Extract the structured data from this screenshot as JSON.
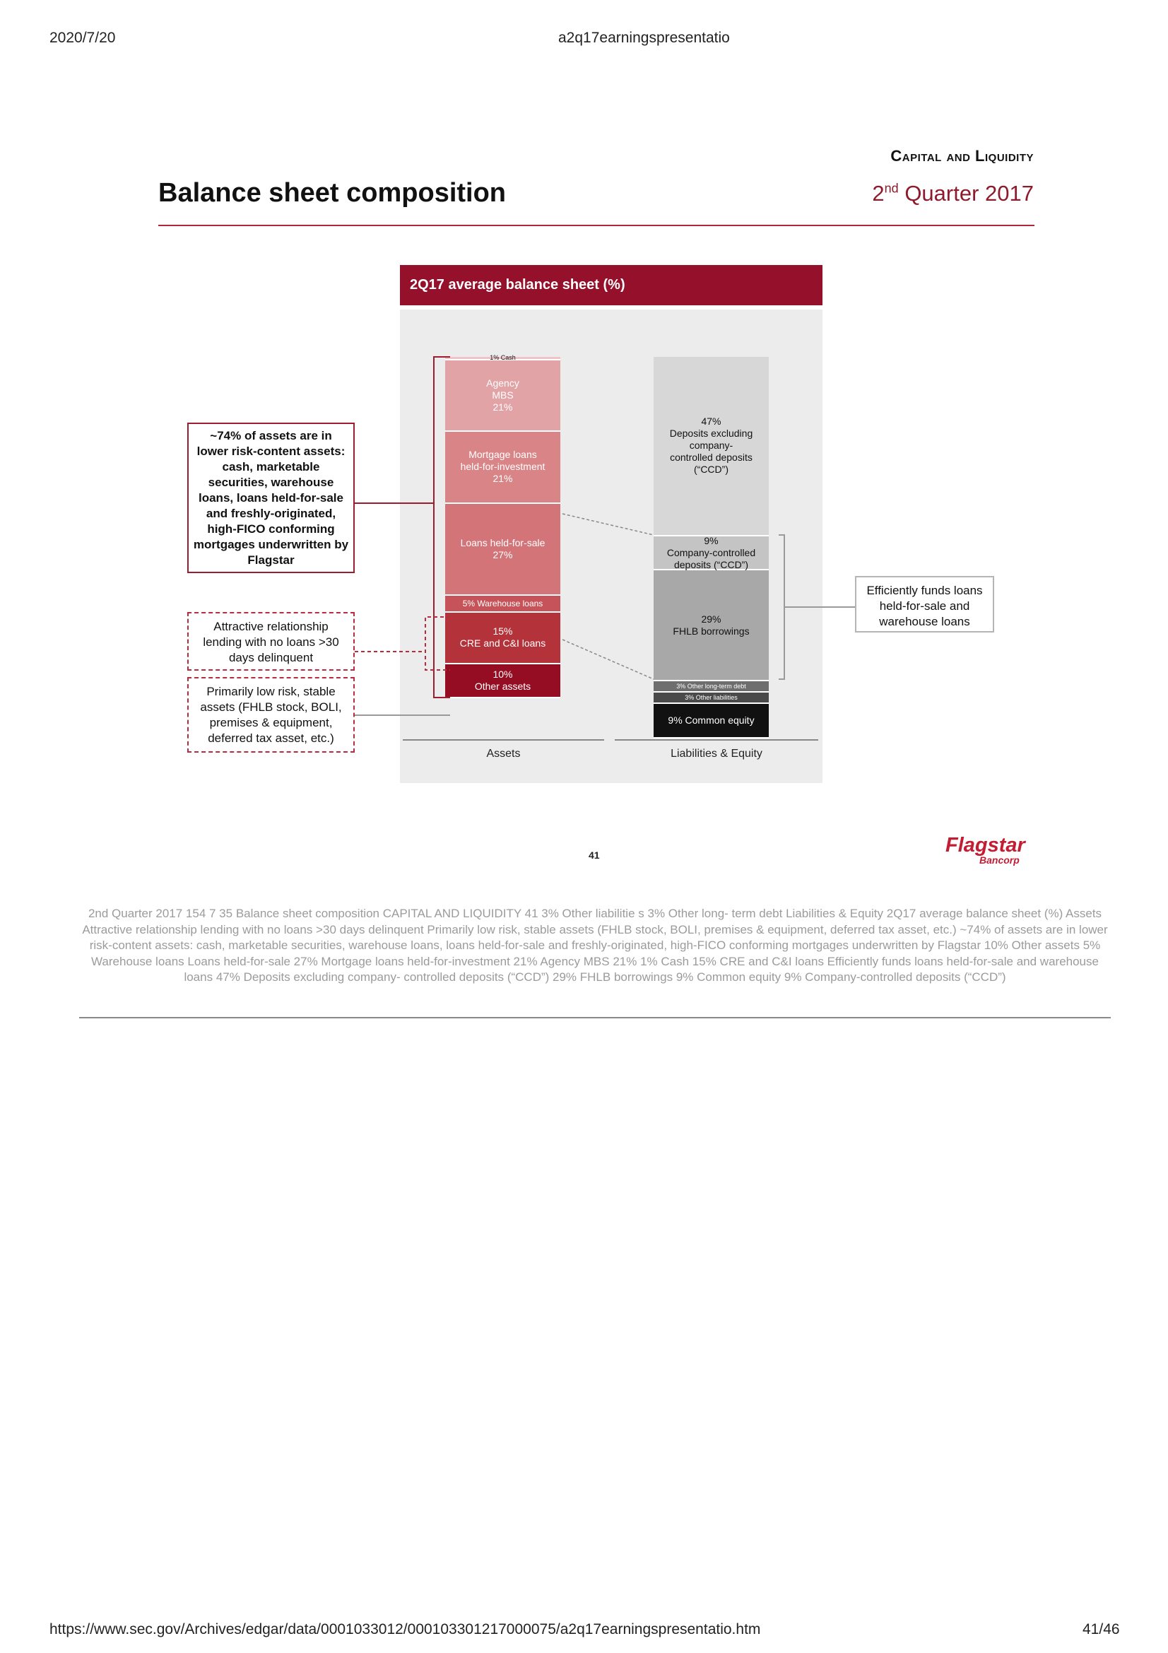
{
  "browser": {
    "date": "2020/7/20",
    "doc_title": "a2q17earningspresentatio",
    "url": "https://www.sec.gov/Archives/edgar/data/0001033012/000103301217000075/a2q17earningspresentatio.htm",
    "page": "41/46"
  },
  "slide": {
    "section": "Capital and Liquidity",
    "title": "Balance sheet composition",
    "quarter_prefix": "2",
    "quarter_sup": "nd",
    "quarter_suffix": " Quarter 2017",
    "panel_title": "2Q17 average balance sheet (%)",
    "page_number": "41",
    "logo_main": "Flagstar",
    "logo_sub": "Bancorp"
  },
  "callouts": {
    "risk": "~74% of assets are in lower risk-content assets: cash, marketable securities, warehouse loans, loans held-for-sale and freshly-originated, high-FICO conforming mortgages underwritten by Flagstar",
    "relationship": "Attractive relationship lending with no loans >30 days delinquent",
    "stable": "Primarily low risk, stable assets (FHLB stock, BOLI, premises & equipment, deferred tax asset, etc.)",
    "efficient": "Efficiently funds loans held-for-sale and warehouse loans"
  },
  "chart_data": {
    "type": "bar",
    "stacked": true,
    "title": "2Q17 average balance sheet (%)",
    "categories": [
      "Assets",
      "Liabilities & Equity"
    ],
    "series": [
      {
        "category": "Assets",
        "segments": [
          {
            "label": "1% Cash",
            "value": 1,
            "color": "#f1c3c6"
          },
          {
            "label": "Agency\nMBS\n21%",
            "value": 21,
            "color": "#e2a3a6"
          },
          {
            "label": "Mortgage loans\nheld-for-investment\n21%",
            "value": 21,
            "color": "#d98487"
          },
          {
            "label": "Loans held-for-sale\n27%",
            "value": 27,
            "color": "#d37478"
          },
          {
            "label": "5% Warehouse loans",
            "value": 5,
            "color": "#c65359"
          },
          {
            "label": "15%\nCRE and C&I loans",
            "value": 15,
            "color": "#b4333a"
          },
          {
            "label": "10%\nOther assets",
            "value": 10,
            "color": "#950d23"
          }
        ]
      },
      {
        "category": "Liabilities & Equity",
        "segments": [
          {
            "label": "47%\nDeposits excluding\ncompany-\ncontrolled deposits\n(“CCD”)",
            "value": 47,
            "color": "#d7d7d7"
          },
          {
            "label": "9%\nCompany-controlled\ndeposits (“CCD”)",
            "value": 9,
            "color": "#c4c4c4"
          },
          {
            "label": "29%\nFHLB borrowings",
            "value": 29,
            "color": "#a8a8a8"
          },
          {
            "label": "3%\nOther\nlong-term debt",
            "value": 3,
            "color": "#6e6e6e"
          },
          {
            "label": "3%\nOther liabilities",
            "value": 3,
            "color": "#4a4a4a"
          },
          {
            "label": "9% Common equity",
            "value": 9,
            "color": "#111111"
          }
        ]
      }
    ]
  },
  "ocr_text": "2nd Quarter 2017 154 7 35 Balance sheet composition CAPITAL AND LIQUIDITY 41 3% Other liabilitie s 3% Other long- term debt Liabilities & Equity 2Q17 average balance sheet (%) Assets Attractive relationship lending with no loans >30 days delinquent Primarily low risk, stable assets (FHLB stock, BOLI, premises & equipment, deferred tax asset, etc.) ~74% of assets are in lower risk-content assets: cash, marketable securities, warehouse loans, loans held-for-sale and freshly-originated, high-FICO conforming mortgages underwritten by Flagstar 10% Other assets 5% Warehouse loans Loans held-for-sale 27% Mortgage loans held-for-investment 21% Agency MBS 21% 1% Cash 15% CRE and C&I loans Efficiently funds loans held-for-sale and warehouse loans 47% Deposits excluding company- controlled deposits (“CCD”) 29% FHLB borrowings 9% Common equity 9% Company-controlled deposits (“CCD”)"
}
